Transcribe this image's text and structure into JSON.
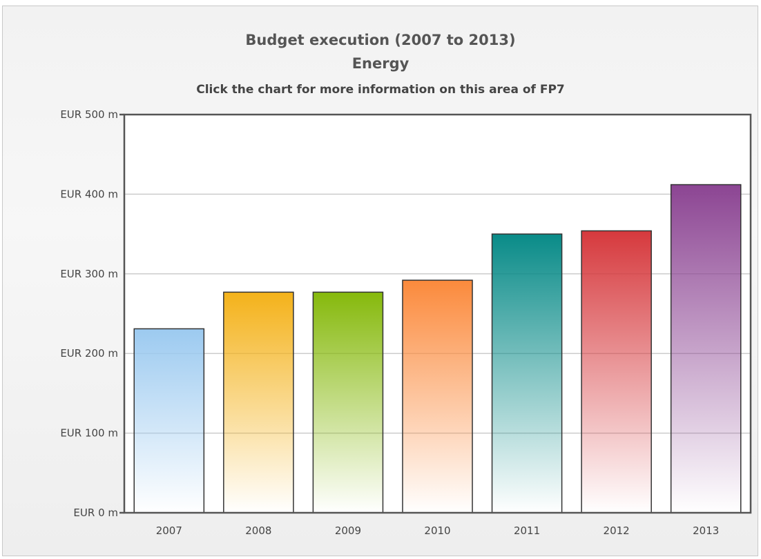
{
  "chart_data": {
    "type": "bar",
    "title": "Budget execution (2007 to 2013)",
    "subtitle": "Energy",
    "note": "Click the chart for more information on this area of FP7",
    "categories": [
      "2007",
      "2008",
      "2009",
      "2010",
      "2011",
      "2012",
      "2013"
    ],
    "values": [
      231,
      277,
      277,
      292,
      350,
      354,
      412
    ],
    "ylim": [
      0,
      500
    ],
    "yticks": [
      0,
      100,
      200,
      300,
      400,
      500
    ],
    "ytick_labels": [
      "EUR 0 m",
      "EUR 100 m",
      "EUR 200 m",
      "EUR 300 m",
      "EUR 400 m",
      "EUR 500 m"
    ],
    "grid": true,
    "legend": "none",
    "bar_colors": [
      "#9ccaf0",
      "#f4b21a",
      "#86b90c",
      "#fb8a3c",
      "#098b88",
      "#d6393d",
      "#8c4593"
    ]
  }
}
